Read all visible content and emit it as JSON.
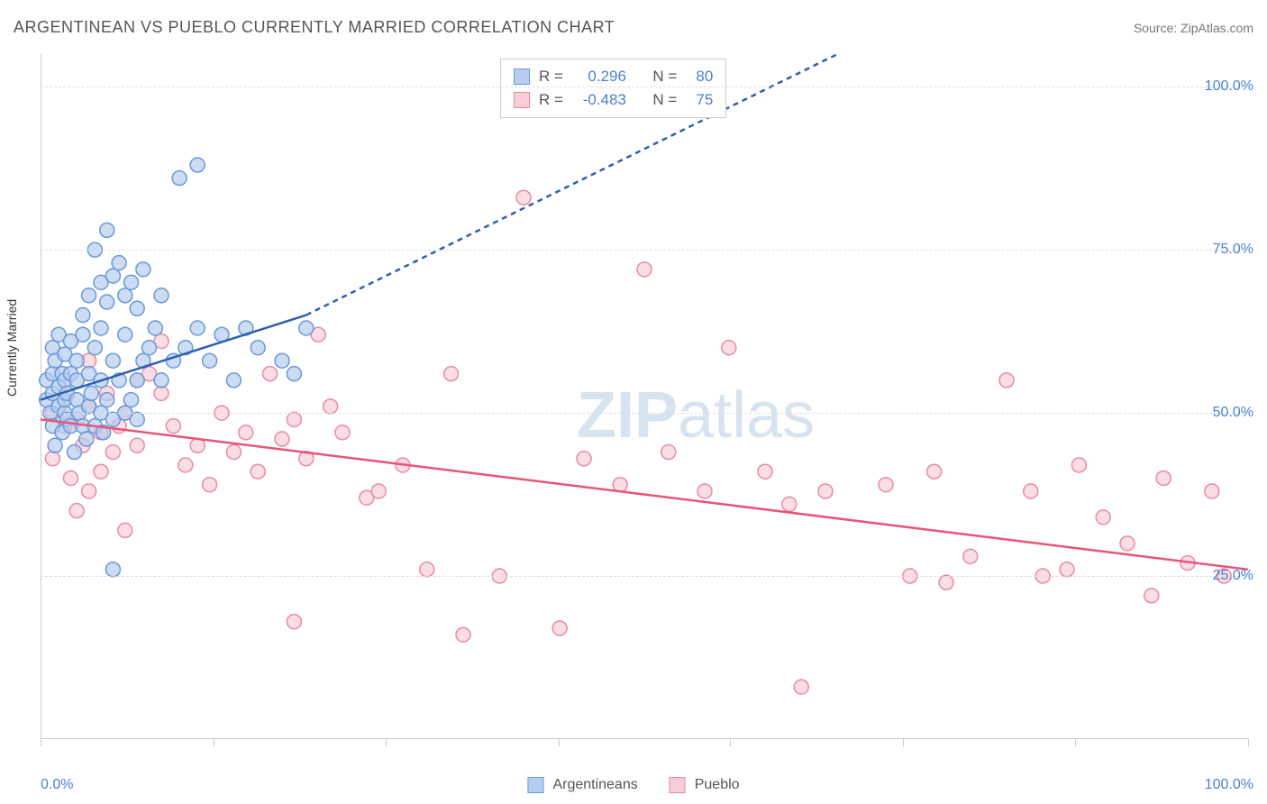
{
  "header": {
    "title": "ARGENTINEAN VS PUEBLO CURRENTLY MARRIED CORRELATION CHART",
    "source": "Source: ZipAtlas.com"
  },
  "chart": {
    "type": "scatter",
    "ylabel": "Currently Married",
    "xlim": [
      0,
      100
    ],
    "ylim": [
      0,
      105
    ],
    "xticks": [
      0,
      14.3,
      28.6,
      42.9,
      57.1,
      71.4,
      85.7,
      100
    ],
    "yticks": [
      25,
      50,
      75,
      100
    ],
    "ytick_labels": [
      "25.0%",
      "50.0%",
      "75.0%",
      "100.0%"
    ],
    "xaxis_min_label": "0.0%",
    "xaxis_max_label": "100.0%",
    "grid_color": "#dddddd",
    "axis_color": "#cccccc",
    "tick_label_color": "#4a7fd4",
    "background_color": "#ffffff",
    "marker_radius": 8,
    "marker_stroke_width": 1.5,
    "trend_line_width": 2.5,
    "trend_dash": "6,5"
  },
  "watermark": {
    "zip": "ZIP",
    "atlas": "atlas",
    "color": "#d8e3f0"
  },
  "series": {
    "argentineans": {
      "label": "Argentineans",
      "fill": "#b5cdee",
      "stroke": "#6a98d8",
      "opacity": 0.7,
      "R": "0.296",
      "N": "80",
      "trend": {
        "solid": [
          [
            0,
            52
          ],
          [
            22,
            65
          ]
        ],
        "dashed": [
          [
            22,
            65
          ],
          [
            66,
            105
          ]
        ],
        "color": "#2f5fb0"
      },
      "points": [
        [
          0.5,
          52
        ],
        [
          0.5,
          55
        ],
        [
          0.8,
          50
        ],
        [
          1,
          48
        ],
        [
          1,
          53
        ],
        [
          1,
          56
        ],
        [
          1,
          60
        ],
        [
          1.2,
          45
        ],
        [
          1.2,
          58
        ],
        [
          1.5,
          51
        ],
        [
          1.5,
          54
        ],
        [
          1.5,
          62
        ],
        [
          1.8,
          47
        ],
        [
          1.8,
          56
        ],
        [
          2,
          50
        ],
        [
          2,
          52
        ],
        [
          2,
          55
        ],
        [
          2,
          59
        ],
        [
          2.2,
          49
        ],
        [
          2.2,
          53
        ],
        [
          2.5,
          48
        ],
        [
          2.5,
          56
        ],
        [
          2.5,
          61
        ],
        [
          2.8,
          44
        ],
        [
          3,
          52
        ],
        [
          3,
          55
        ],
        [
          3,
          58
        ],
        [
          3.2,
          50
        ],
        [
          3.5,
          48
        ],
        [
          3.5,
          62
        ],
        [
          3.5,
          65
        ],
        [
          3.8,
          46
        ],
        [
          4,
          51
        ],
        [
          4,
          56
        ],
        [
          4,
          68
        ],
        [
          4.2,
          53
        ],
        [
          4.5,
          48
        ],
        [
          4.5,
          60
        ],
        [
          4.5,
          75
        ],
        [
          5,
          50
        ],
        [
          5,
          55
        ],
        [
          5,
          63
        ],
        [
          5,
          70
        ],
        [
          5.2,
          47
        ],
        [
          5.5,
          52
        ],
        [
          5.5,
          67
        ],
        [
          5.5,
          78
        ],
        [
          6,
          49
        ],
        [
          6,
          58
        ],
        [
          6,
          71
        ],
        [
          6,
          26
        ],
        [
          6.5,
          55
        ],
        [
          6.5,
          73
        ],
        [
          7,
          50
        ],
        [
          7,
          62
        ],
        [
          7,
          68
        ],
        [
          7.5,
          52
        ],
        [
          7.5,
          70
        ],
        [
          8,
          55
        ],
        [
          8,
          66
        ],
        [
          8,
          49
        ],
        [
          8.5,
          58
        ],
        [
          8.5,
          72
        ],
        [
          9,
          60
        ],
        [
          9.5,
          63
        ],
        [
          10,
          55
        ],
        [
          10,
          68
        ],
        [
          11,
          58
        ],
        [
          11.5,
          86
        ],
        [
          12,
          60
        ],
        [
          13,
          63
        ],
        [
          13,
          88
        ],
        [
          14,
          58
        ],
        [
          15,
          62
        ],
        [
          16,
          55
        ],
        [
          17,
          63
        ],
        [
          18,
          60
        ],
        [
          20,
          58
        ],
        [
          21,
          56
        ],
        [
          22,
          63
        ]
      ]
    },
    "pueblo": {
      "label": "Pueblo",
      "fill": "#f7cdd6",
      "stroke": "#e88ba0",
      "opacity": 0.65,
      "R": "-0.483",
      "N": "75",
      "trend": {
        "solid": [
          [
            0,
            49
          ],
          [
            100,
            26
          ]
        ],
        "dashed": null,
        "color": "#e8547a"
      },
      "points": [
        [
          1,
          50
        ],
        [
          1,
          43
        ],
        [
          2,
          48
        ],
        [
          2,
          52
        ],
        [
          2.5,
          40
        ],
        [
          3,
          49
        ],
        [
          3,
          35
        ],
        [
          3.5,
          45
        ],
        [
          4,
          51
        ],
        [
          4,
          38
        ],
        [
          4,
          58
        ],
        [
          5,
          47
        ],
        [
          5,
          41
        ],
        [
          5.5,
          53
        ],
        [
          6,
          44
        ],
        [
          6.5,
          48
        ],
        [
          7,
          50
        ],
        [
          7,
          32
        ],
        [
          8,
          45
        ],
        [
          8,
          55
        ],
        [
          9,
          56
        ],
        [
          10,
          53
        ],
        [
          10,
          61
        ],
        [
          11,
          48
        ],
        [
          12,
          42
        ],
        [
          13,
          45
        ],
        [
          14,
          39
        ],
        [
          15,
          50
        ],
        [
          16,
          44
        ],
        [
          17,
          47
        ],
        [
          18,
          41
        ],
        [
          19,
          56
        ],
        [
          20,
          46
        ],
        [
          21,
          49
        ],
        [
          21,
          18
        ],
        [
          22,
          43
        ],
        [
          23,
          62
        ],
        [
          24,
          51
        ],
        [
          25,
          47
        ],
        [
          27,
          37
        ],
        [
          28,
          38
        ],
        [
          30,
          42
        ],
        [
          32,
          26
        ],
        [
          34,
          56
        ],
        [
          35,
          16
        ],
        [
          38,
          25
        ],
        [
          40,
          83
        ],
        [
          43,
          17
        ],
        [
          45,
          43
        ],
        [
          48,
          39
        ],
        [
          50,
          72
        ],
        [
          52,
          44
        ],
        [
          55,
          38
        ],
        [
          57,
          60
        ],
        [
          60,
          41
        ],
        [
          62,
          36
        ],
        [
          63,
          8
        ],
        [
          65,
          38
        ],
        [
          70,
          39
        ],
        [
          72,
          25
        ],
        [
          74,
          41
        ],
        [
          75,
          24
        ],
        [
          77,
          28
        ],
        [
          80,
          55
        ],
        [
          82,
          38
        ],
        [
          83,
          25
        ],
        [
          85,
          26
        ],
        [
          86,
          42
        ],
        [
          88,
          34
        ],
        [
          90,
          30
        ],
        [
          92,
          22
        ],
        [
          93,
          40
        ],
        [
          95,
          27
        ],
        [
          97,
          38
        ],
        [
          98,
          25
        ]
      ]
    }
  },
  "legend": {
    "bottom_items": [
      "argentineans",
      "pueblo"
    ]
  },
  "stats_box": {
    "R_label": "R =",
    "N_label": "N ="
  }
}
